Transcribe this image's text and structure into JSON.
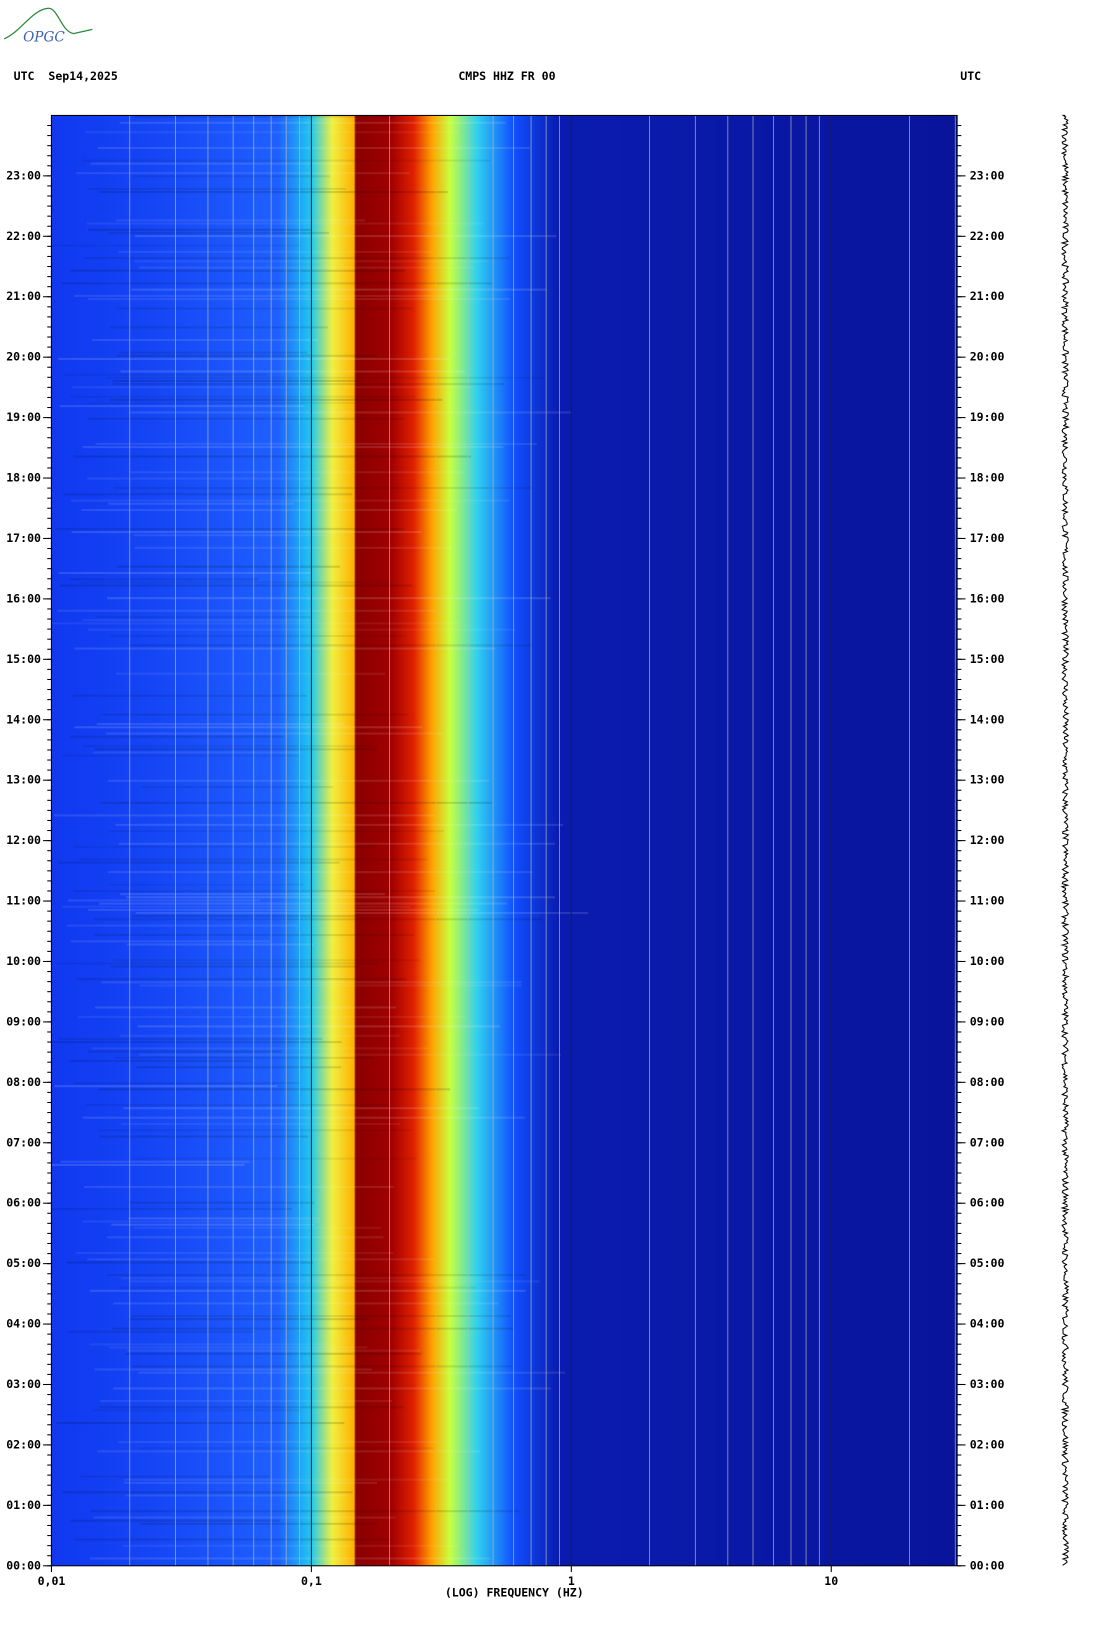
{
  "logo": "OPGC",
  "chart_data": {
    "type": "spectrogram",
    "title_left": "UTC  Sep14,2025",
    "title": "CMPS HHZ FR 00",
    "title_right": "UTC",
    "x_label": "(LOG) FREQUENCY (HZ)",
    "xscale": "log",
    "xlim": [
      0.01,
      30.5
    ],
    "xticks": [
      {
        "value": 0.01,
        "label": "0,01"
      },
      {
        "value": 0.1,
        "label": "0,1"
      },
      1,
      10
    ],
    "ylim": [
      0,
      24
    ],
    "yticks": [
      {
        "value": 0,
        "label": "00:00"
      },
      {
        "value": 1,
        "label": "01:00"
      },
      {
        "value": 2,
        "label": "02:00"
      },
      {
        "value": 3,
        "label": "03:00"
      },
      {
        "value": 4,
        "label": "04:00"
      },
      {
        "value": 5,
        "label": "05:00"
      },
      {
        "value": 6,
        "label": "06:00"
      },
      {
        "value": 7,
        "label": "07:00"
      },
      {
        "value": 8,
        "label": "08:00"
      },
      {
        "value": 9,
        "label": "09:00"
      },
      {
        "value": 10,
        "label": "10:00"
      },
      {
        "value": 11,
        "label": "11:00"
      },
      {
        "value": 12,
        "label": "12:00"
      },
      {
        "value": 13,
        "label": "13:00"
      },
      {
        "value": 14,
        "label": "14:00"
      },
      {
        "value": 15,
        "label": "15:00"
      },
      {
        "value": 16,
        "label": "16:00"
      },
      {
        "value": 17,
        "label": "17:00"
      },
      {
        "value": 18,
        "label": "18:00"
      },
      {
        "value": 19,
        "label": "19:00"
      },
      {
        "value": 20,
        "label": "20:00"
      },
      {
        "value": 21,
        "label": "21:00"
      },
      {
        "value": 22,
        "label": "22:00"
      },
      {
        "value": 23,
        "label": "23:00"
      }
    ]
  }
}
